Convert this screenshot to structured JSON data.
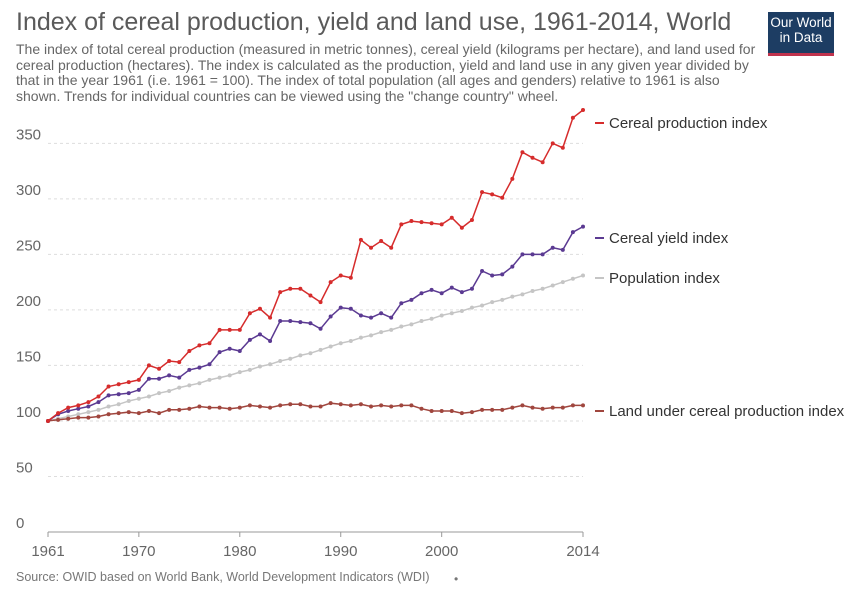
{
  "header": {
    "title": "Index of cereal production, yield and land use, 1961-2014, World",
    "subtitle": "The index of total cereal production (measured in metric tonnes), cereal yield (kilograms per hectare), and land used for cereal production (hectares). The index is calculated as the production, yield and land use in any given year divided by that in the year 1961 (i.e. 1961 = 100). The index of total population (all ages and genders) relative to 1961 is also shown. Trends for individual countries can be viewed using the \"change country\" wheel.",
    "logo_line1": "Our World",
    "logo_line2": "in Data"
  },
  "footer": {
    "source": "Source: OWID based on World Bank, World Development Indicators (WDI)",
    "dot": "•"
  },
  "chart_data": {
    "type": "line",
    "title": "Index of cereal production, yield and land use, 1961-2014, World",
    "xlabel": "",
    "ylabel": "",
    "xlim": [
      1961,
      2014
    ],
    "ylim": [
      0,
      380
    ],
    "x_ticks": [
      "1961",
      "1970",
      "1980",
      "1990",
      "2000",
      "2014"
    ],
    "y_ticks": [
      "0",
      "50",
      "100",
      "150",
      "200",
      "250",
      "300",
      "350"
    ],
    "grid": "horizontal-dashed",
    "legend": "right end-of-line labels",
    "x": [
      1961,
      1962,
      1963,
      1964,
      1965,
      1966,
      1967,
      1968,
      1969,
      1970,
      1971,
      1972,
      1973,
      1974,
      1975,
      1976,
      1977,
      1978,
      1979,
      1980,
      1981,
      1982,
      1983,
      1984,
      1985,
      1986,
      1987,
      1988,
      1989,
      1990,
      1991,
      1992,
      1993,
      1994,
      1995,
      1996,
      1997,
      1998,
      1999,
      2000,
      2001,
      2002,
      2003,
      2004,
      2005,
      2006,
      2007,
      2008,
      2009,
      2010,
      2011,
      2012,
      2013,
      2014
    ],
    "series": [
      {
        "name": "Cereal production index",
        "color": "#d62c2c",
        "values": [
          100,
          107,
          112,
          114,
          117,
          122,
          131,
          133,
          135,
          137,
          150,
          147,
          154,
          153,
          163,
          168,
          170,
          182,
          182,
          182,
          197,
          201,
          193,
          216,
          219,
          219,
          213,
          207,
          225,
          231,
          229,
          263,
          256,
          262,
          256,
          277,
          280,
          279,
          278,
          277,
          283,
          274,
          281,
          306,
          304,
          301,
          318,
          342,
          337,
          333,
          350,
          346,
          373,
          380
        ]
      },
      {
        "name": "Cereal yield index",
        "color": "#5b3a92",
        "values": [
          100,
          106,
          109,
          111,
          113,
          117,
          123,
          124,
          125,
          128,
          138,
          138,
          141,
          139,
          146,
          148,
          151,
          162,
          165,
          163,
          173,
          178,
          172,
          190,
          190,
          189,
          188,
          183,
          194,
          202,
          201,
          195,
          193,
          197,
          193,
          206,
          209,
          215,
          218,
          215,
          220,
          216,
          219,
          235,
          231,
          232,
          239,
          250,
          250,
          250,
          256,
          254,
          270,
          275
        ]
      },
      {
        "name": "Population index",
        "color": "#c5c5c5",
        "values": [
          100,
          102,
          104,
          106,
          108,
          110,
          113,
          115,
          118,
          120,
          122,
          125,
          127,
          130,
          132,
          134,
          137,
          139,
          141,
          144,
          146,
          149,
          151,
          154,
          156,
          159,
          161,
          164,
          167,
          170,
          172,
          175,
          177,
          180,
          182,
          185,
          187,
          190,
          192,
          195,
          197,
          199,
          202,
          204,
          207,
          209,
          212,
          214,
          217,
          219,
          222,
          225,
          228,
          231
        ]
      },
      {
        "name": "Land under cereal production index",
        "color": "#a0463e",
        "values": [
          100,
          101,
          102,
          103,
          103,
          104,
          106,
          107,
          108,
          107,
          109,
          107,
          110,
          110,
          111,
          113,
          112,
          112,
          111,
          112,
          114,
          113,
          112,
          114,
          115,
          115,
          113,
          113,
          116,
          115,
          114,
          115,
          113,
          114,
          113,
          114,
          114,
          111,
          109,
          109,
          109,
          107,
          108,
          110,
          110,
          110,
          112,
          114,
          112,
          111,
          112,
          112,
          114,
          114
        ]
      }
    ]
  }
}
